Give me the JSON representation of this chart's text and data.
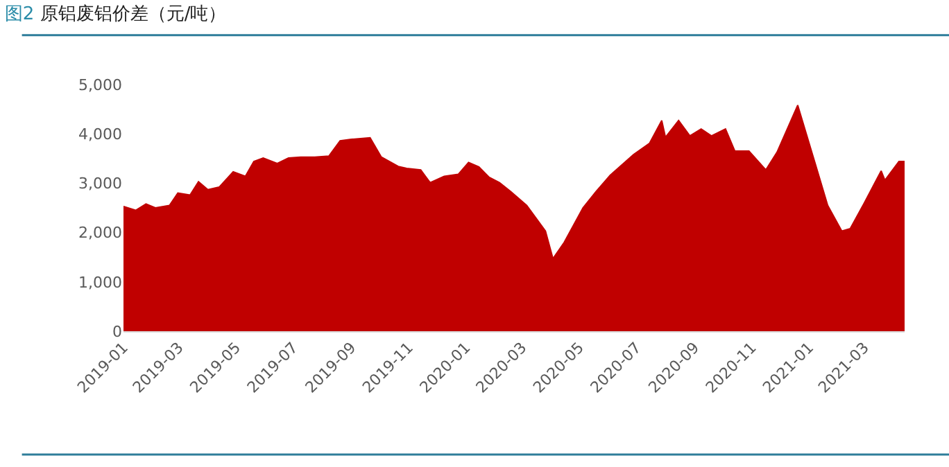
{
  "chart_data": {
    "type": "area",
    "title": "图2 原铝废铝价差（元/吨）",
    "x": [
      "2019-01-01",
      "2019-01-14",
      "2019-01-25",
      "2019-02-04",
      "2019-02-19",
      "2019-02-28",
      "2019-03-13",
      "2019-03-22",
      "2019-04-01",
      "2019-04-13",
      "2019-04-28",
      "2019-05-11",
      "2019-05-20",
      "2019-05-30",
      "2019-06-14",
      "2019-06-26",
      "2019-07-09",
      "2019-07-24",
      "2019-08-08",
      "2019-08-20",
      "2019-09-01",
      "2019-09-21",
      "2019-10-03",
      "2019-10-21",
      "2019-10-30",
      "2019-11-14",
      "2019-11-24",
      "2019-12-09",
      "2019-12-24",
      "2020-01-04",
      "2020-01-15",
      "2020-01-26",
      "2020-02-06",
      "2020-02-18",
      "2020-03-06",
      "2020-03-26",
      "2020-04-03",
      "2020-04-15",
      "2020-05-05",
      "2020-05-19",
      "2020-06-03",
      "2020-06-28",
      "2020-07-15",
      "2020-07-28",
      "2020-08-01",
      "2020-08-15",
      "2020-08-27",
      "2020-09-08",
      "2020-09-19",
      "2020-10-04",
      "2020-10-14",
      "2020-10-29",
      "2020-11-16",
      "2020-11-28",
      "2020-12-20",
      "2021-01-07",
      "2021-01-21",
      "2021-02-05",
      "2021-02-14",
      "2021-03-01",
      "2021-03-19",
      "2021-03-23",
      "2021-04-07",
      "2021-04-13"
    ],
    "series": [
      {
        "color": "#c00000",
        "values": [
          2530,
          2450,
          2580,
          2500,
          2550,
          2800,
          2760,
          3030,
          2870,
          2920,
          3230,
          3140,
          3440,
          3510,
          3400,
          3510,
          3530,
          3530,
          3550,
          3860,
          3890,
          3920,
          3530,
          3340,
          3300,
          3270,
          3010,
          3140,
          3180,
          3420,
          3330,
          3120,
          3010,
          2830,
          2550,
          2030,
          1470,
          1800,
          2500,
          2830,
          3160,
          3580,
          3810,
          4270,
          3930,
          4270,
          3960,
          4100,
          3960,
          4100,
          3650,
          3650,
          3270,
          3630,
          4580,
          3440,
          2550,
          2030,
          2080,
          2600,
          3250,
          3060,
          3440,
          3440
        ]
      }
    ],
    "xticks": [
      {
        "value": "2019-01-01",
        "label": "2019-01"
      },
      {
        "value": "2019-03-01",
        "label": "2019-03"
      },
      {
        "value": "2019-05-01",
        "label": "2019-05"
      },
      {
        "value": "2019-07-01",
        "label": "2019-07"
      },
      {
        "value": "2019-09-01",
        "label": "2019-09"
      },
      {
        "value": "2019-11-01",
        "label": "2019-11"
      },
      {
        "value": "2020-01-01",
        "label": "2020-01"
      },
      {
        "value": "2020-03-01",
        "label": "2020-03"
      },
      {
        "value": "2020-05-01",
        "label": "2020-05"
      },
      {
        "value": "2020-07-01",
        "label": "2020-07"
      },
      {
        "value": "2020-09-01",
        "label": "2020-09"
      },
      {
        "value": "2020-11-01",
        "label": "2020-11"
      },
      {
        "value": "2021-01-01",
        "label": "2021-01"
      },
      {
        "value": "2021-03-01",
        "label": "2021-03"
      }
    ],
    "ylim": [
      0,
      5000
    ],
    "yticks": [
      0,
      {
        "value": 1000,
        "label": "1,000"
      },
      {
        "value": 2000,
        "label": "2,000"
      },
      {
        "value": 3000,
        "label": "3,000"
      },
      {
        "value": 4000,
        "label": "4,000"
      },
      {
        "value": 5000,
        "label": "5,000"
      }
    ],
    "xlim": [
      "2019-01-01",
      "2021-04-13"
    ]
  }
}
